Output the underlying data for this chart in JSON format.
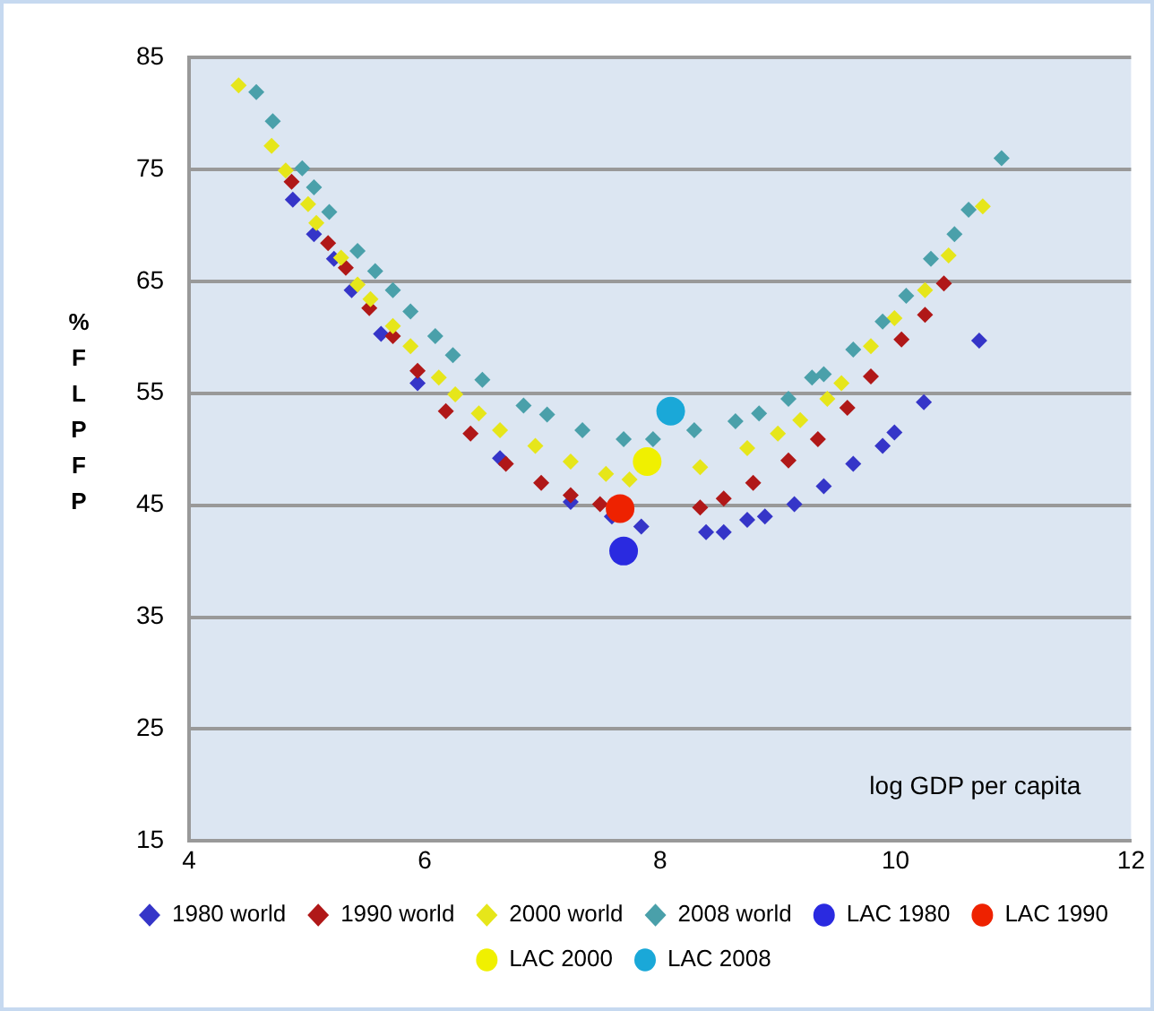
{
  "chart_data": {
    "type": "scatter",
    "ylabel": "%FLPFP",
    "xlabel": "log GDP per capita",
    "xlim": [
      4,
      12
    ],
    "xticks": [
      4,
      6,
      8,
      10,
      12
    ],
    "ylim": [
      15,
      85
    ],
    "yticks": [
      15,
      25,
      35,
      45,
      55,
      65,
      75,
      85
    ],
    "grid": "y",
    "legend": "bottom",
    "series": [
      {
        "name": "1980 world",
        "color": "#3535c8",
        "marker": "diamond",
        "x": [
          4.88,
          5.06,
          5.23,
          5.38,
          5.63,
          5.94,
          6.64,
          7.24,
          7.59,
          7.84,
          8.39,
          8.54,
          8.74,
          8.89,
          9.14,
          9.39,
          9.64,
          9.89,
          9.99,
          10.24,
          10.71
        ],
        "values": [
          72.3,
          69.2,
          67.0,
          64.2,
          60.3,
          55.9,
          49.2,
          45.3,
          44.0,
          43.1,
          42.6,
          42.6,
          43.7,
          44.0,
          45.1,
          46.7,
          48.7,
          50.3,
          51.5,
          54.2,
          59.7
        ]
      },
      {
        "name": "1990 world",
        "color": "#b01818",
        "marker": "diamond",
        "x": [
          4.87,
          5.18,
          5.33,
          5.53,
          5.73,
          5.94,
          6.18,
          6.39,
          6.69,
          6.99,
          7.24,
          7.49,
          8.34,
          8.54,
          8.79,
          9.09,
          9.34,
          9.59,
          9.79,
          10.05,
          10.25,
          10.41
        ],
        "values": [
          73.9,
          68.4,
          66.2,
          62.6,
          60.1,
          57.0,
          53.4,
          51.4,
          48.7,
          47.0,
          45.9,
          45.1,
          44.8,
          45.6,
          47.0,
          49.0,
          50.9,
          53.7,
          56.5,
          59.8,
          62.0,
          64.8
        ]
      },
      {
        "name": "2000 world",
        "color": "#e6e61a",
        "marker": "diamond",
        "x": [
          4.42,
          4.7,
          4.82,
          5.01,
          5.08,
          5.29,
          5.43,
          5.54,
          5.73,
          5.88,
          6.12,
          6.26,
          6.46,
          6.64,
          6.94,
          7.24,
          7.54,
          7.74,
          8.34,
          8.74,
          9.0,
          9.19,
          9.42,
          9.54,
          9.79,
          9.99,
          10.25,
          10.45,
          10.74
        ],
        "values": [
          82.5,
          77.1,
          74.9,
          71.9,
          70.2,
          67.1,
          64.7,
          63.4,
          61.0,
          59.2,
          56.4,
          54.9,
          53.2,
          51.7,
          50.3,
          48.9,
          47.8,
          47.3,
          48.4,
          50.1,
          51.4,
          52.6,
          54.5,
          55.9,
          59.2,
          61.7,
          64.2,
          67.3,
          71.7
        ]
      },
      {
        "name": "2008 world",
        "color": "#4aa0aa",
        "marker": "diamond",
        "x": [
          4.57,
          4.71,
          4.96,
          5.06,
          5.19,
          5.43,
          5.58,
          5.73,
          5.88,
          6.09,
          6.24,
          6.49,
          6.84,
          7.04,
          7.34,
          7.69,
          7.94,
          8.29,
          8.64,
          8.84,
          9.09,
          9.29,
          9.39,
          9.64,
          9.89,
          10.09,
          10.3,
          10.5,
          10.62,
          10.9
        ],
        "values": [
          81.9,
          79.3,
          75.1,
          73.4,
          71.2,
          67.7,
          65.9,
          64.2,
          62.3,
          60.1,
          58.4,
          56.2,
          53.9,
          53.1,
          51.7,
          50.9,
          50.9,
          51.7,
          52.5,
          53.2,
          54.5,
          56.4,
          56.7,
          58.9,
          61.4,
          63.7,
          67.0,
          69.2,
          71.4,
          76.0
        ]
      },
      {
        "name": "LAC 1980",
        "color": "#2a2ae0",
        "marker": "circle",
        "x": [
          7.69
        ],
        "values": [
          40.9
        ]
      },
      {
        "name": "LAC 1990",
        "color": "#ee2200",
        "marker": "circle",
        "x": [
          7.66
        ],
        "values": [
          44.7
        ]
      },
      {
        "name": "LAC 2000",
        "color": "#f0f000",
        "marker": "circle",
        "x": [
          7.89
        ],
        "values": [
          48.9
        ]
      },
      {
        "name": "LAC 2008",
        "color": "#1aa8d8",
        "marker": "circle",
        "x": [
          8.09
        ],
        "values": [
          53.4
        ]
      }
    ]
  }
}
